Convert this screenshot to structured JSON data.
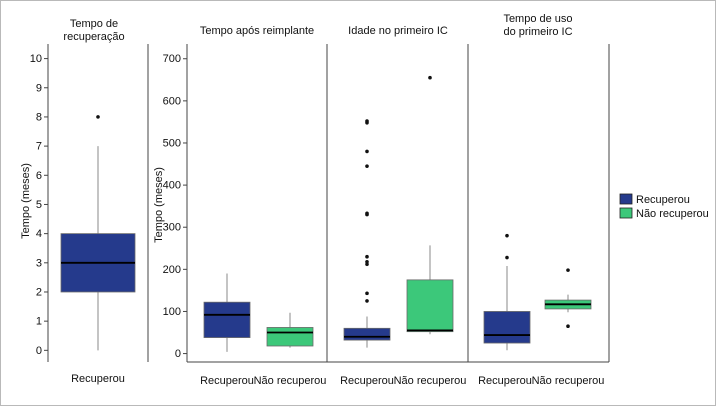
{
  "chart_data": [
    {
      "type": "box",
      "title": "Tempo de recuperação",
      "title_lines": [
        "Tempo de",
        "recuperação"
      ],
      "ylabel": "Tempo (meses)",
      "ylim": [
        -0.4,
        10.5
      ],
      "yticks": [
        0,
        1,
        2,
        3,
        4,
        5,
        6,
        7,
        8,
        9,
        10
      ],
      "categories": [
        "Recuperou"
      ],
      "boxes": [
        {
          "category": "Recuperou",
          "group": "Recuperou",
          "whisker_low": 0,
          "q1": 2,
          "median": 3,
          "q3": 4,
          "whisker_high": 7,
          "outliers": [
            8
          ]
        }
      ]
    },
    {
      "type": "box",
      "ylabel": "Tempo (meses)",
      "ylim": [
        -20,
        735
      ],
      "yticks": [
        0,
        100,
        200,
        300,
        400,
        500,
        600,
        700
      ],
      "facets": [
        {
          "title": "Tempo após reimplante",
          "title_lines": [
            "Tempo após reimplante"
          ],
          "categories": [
            "Recuperou",
            "Não recuperou"
          ],
          "boxes": [
            {
              "category": "Recuperou",
              "group": "Recuperou",
              "whisker_low": 4,
              "q1": 38,
              "median": 92,
              "q3": 122,
              "whisker_high": 190,
              "outliers": []
            },
            {
              "category": "Não recuperou",
              "group": "Não recuperou",
              "whisker_low": 14,
              "q1": 18,
              "median": 50,
              "q3": 62,
              "whisker_high": 97,
              "outliers": []
            }
          ]
        },
        {
          "title": "Idade no primeiro IC",
          "title_lines": [
            "Idade no primeiro IC"
          ],
          "categories": [
            "Recuperou",
            "Não recuperou"
          ],
          "boxes": [
            {
              "category": "Recuperou",
              "group": "Recuperou",
              "whisker_low": 14,
              "q1": 32,
              "median": 40,
              "q3": 60,
              "whisker_high": 88,
              "outliers": [
                125,
                143,
                212,
                218,
                230,
                330,
                333,
                445,
                480,
                548,
                552
              ]
            },
            {
              "category": "Não recuperou",
              "group": "Não recuperou",
              "whisker_low": 46,
              "q1": 52,
              "median": 55,
              "q3": 175,
              "whisker_high": 257,
              "outliers": [
                655
              ]
            }
          ]
        },
        {
          "title": "Tempo de uso do primeiro IC",
          "title_lines": [
            "Tempo de uso",
            "do primeiro IC"
          ],
          "categories": [
            "Recuperou",
            "Não recuperou"
          ],
          "boxes": [
            {
              "category": "Recuperou",
              "group": "Recuperou",
              "whisker_low": 8,
              "q1": 25,
              "median": 44,
              "q3": 100,
              "whisker_high": 208,
              "outliers": [
                228,
                280
              ]
            },
            {
              "category": "Não recuperou",
              "group": "Não recuperou",
              "whisker_low": 98,
              "q1": 106,
              "median": 117,
              "q3": 127,
              "whisker_high": 140,
              "outliers": [
                65,
                198
              ]
            }
          ]
        }
      ]
    }
  ],
  "legend": {
    "position": "right",
    "items": [
      {
        "label": "Recuperou",
        "color": "#253a8c"
      },
      {
        "label": "Não recuperou",
        "color": "#3cc87a"
      }
    ]
  }
}
